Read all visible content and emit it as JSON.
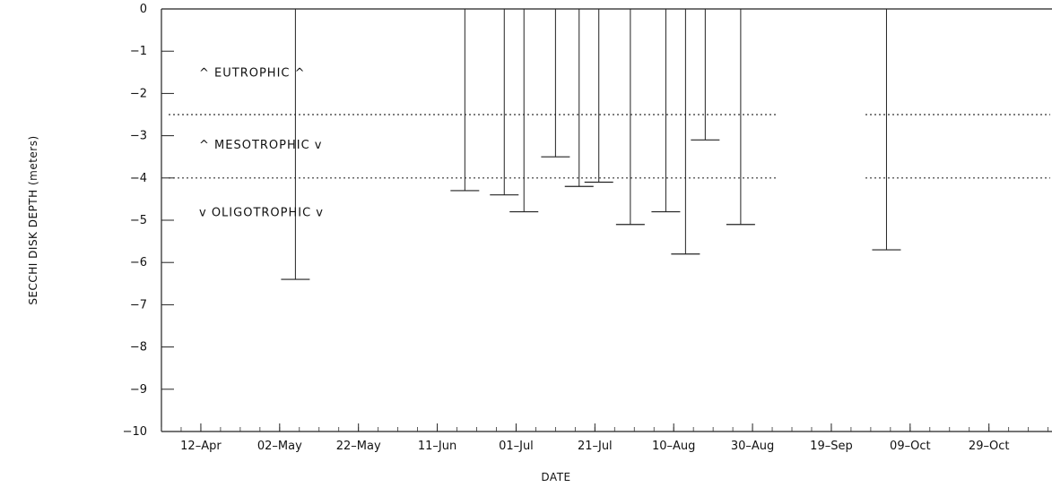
{
  "chart_data": {
    "type": "bar",
    "xlabel": "DATE",
    "ylabel": "SECCHI DISK DEPTH (meters)",
    "ylim": [
      -10,
      0
    ],
    "y_ticks": [
      "0",
      "-1",
      "-2",
      "-3",
      "-4",
      "-5",
      "-6",
      "-7",
      "-8",
      "-9",
      "-10"
    ],
    "x_ticks": [
      "12-Apr",
      "02-May",
      "22-May",
      "11-Jun",
      "01-Jul",
      "21-Jul",
      "10-Aug",
      "30-Aug",
      "19-Sep",
      "09-Oct",
      "29-Oct"
    ],
    "x_range": [
      "1990-04-02",
      "1990-11-14"
    ],
    "trophic_boundaries": [
      -2.5,
      -4.0
    ],
    "zone_labels": [
      "^ EUTROPHIC ^",
      "^ MESOTROPHIC v",
      "v OLIGOTROPHIC v"
    ],
    "measurements": [
      {
        "date": "1990-05-06",
        "depth": -6.4
      },
      {
        "date": "1990-06-18",
        "depth": -4.3
      },
      {
        "date": "1990-06-28",
        "depth": -4.4
      },
      {
        "date": "1990-07-03",
        "depth": -4.8
      },
      {
        "date": "1990-07-11",
        "depth": -3.5
      },
      {
        "date": "1990-07-17",
        "depth": -4.2
      },
      {
        "date": "1990-07-22",
        "depth": -4.1
      },
      {
        "date": "1990-07-30",
        "depth": -5.1
      },
      {
        "date": "1990-08-08",
        "depth": -4.8
      },
      {
        "date": "1990-08-13",
        "depth": -5.8
      },
      {
        "date": "1990-08-18",
        "depth": -3.1
      },
      {
        "date": "1990-08-27",
        "depth": -5.1
      },
      {
        "date": "1990-10-03",
        "depth": -5.7
      }
    ]
  }
}
